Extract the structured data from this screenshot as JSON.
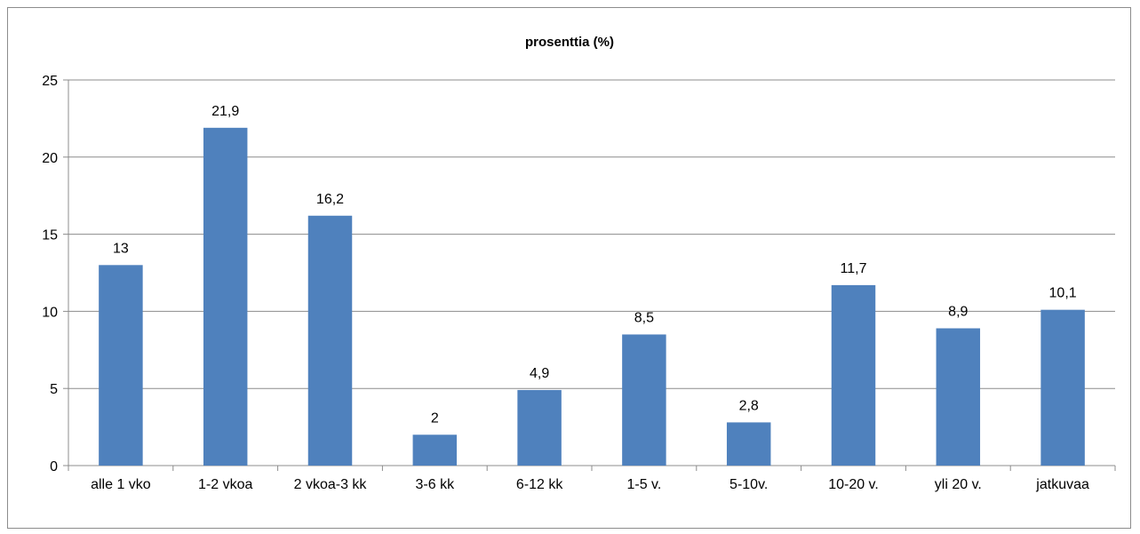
{
  "chart_data": {
    "type": "bar",
    "title": "prosenttia (%)",
    "categories": [
      "alle 1 vko",
      "1-2 vkoa",
      "2 vkoa-3 kk",
      "3-6 kk",
      "6-12 kk",
      "1-5 v.",
      "5-10v.",
      "10-20 v.",
      "yli 20 v.",
      "jatkuvaa"
    ],
    "values": [
      13,
      21.9,
      16.2,
      2,
      4.9,
      8.5,
      2.8,
      11.7,
      8.9,
      10.1
    ],
    "data_labels": [
      "13",
      "21,9",
      "16,2",
      "2",
      "4,9",
      "8,5",
      "2,8",
      "11,7",
      "8,9",
      "10,1"
    ],
    "y_ticks": [
      0,
      5,
      10,
      15,
      20,
      25
    ],
    "ylim": [
      0,
      25
    ],
    "xlabel": "",
    "ylabel": "",
    "grid": true,
    "legend": "none",
    "bar_color": "#4f81bd",
    "grid_color": "#8c8c8c"
  }
}
